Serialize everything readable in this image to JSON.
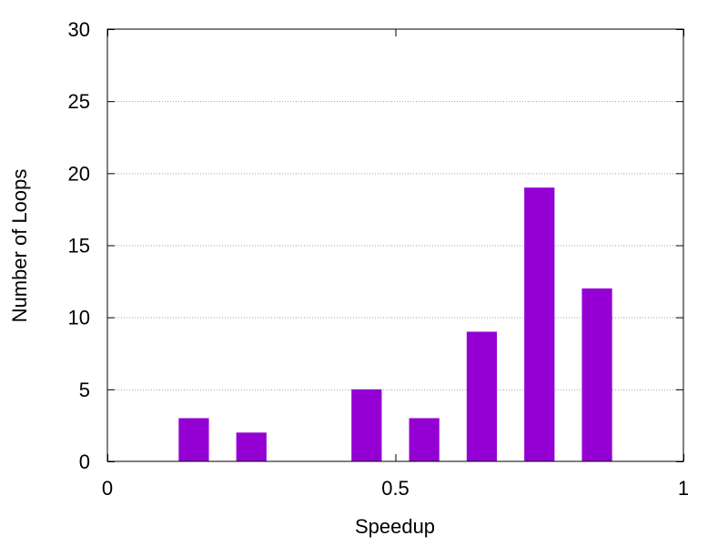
{
  "chart_data": {
    "type": "bar",
    "title": "",
    "xlabel": "Speedup",
    "ylabel": "Number of Loops",
    "xlim": [
      0,
      1
    ],
    "ylim": [
      0,
      30
    ],
    "x_ticks": [
      {
        "value": 0,
        "label": "0"
      },
      {
        "value": 0.5,
        "label": "0.5"
      },
      {
        "value": 1,
        "label": "1"
      }
    ],
    "y_ticks": [
      {
        "value": 0,
        "label": "0"
      },
      {
        "value": 5,
        "label": "5"
      },
      {
        "value": 10,
        "label": "10"
      },
      {
        "value": 15,
        "label": "15"
      },
      {
        "value": 20,
        "label": "20"
      },
      {
        "value": 25,
        "label": "25"
      },
      {
        "value": 30,
        "label": "30"
      }
    ],
    "grid": "horizontal-dotted",
    "bar_color": "#9400d3",
    "bar_width": 0.05,
    "bars": [
      {
        "x": 0.15,
        "value": 3
      },
      {
        "x": 0.25,
        "value": 2
      },
      {
        "x": 0.45,
        "value": 5
      },
      {
        "x": 0.55,
        "value": 3
      },
      {
        "x": 0.65,
        "value": 9
      },
      {
        "x": 0.75,
        "value": 19
      },
      {
        "x": 0.85,
        "value": 12
      }
    ]
  }
}
